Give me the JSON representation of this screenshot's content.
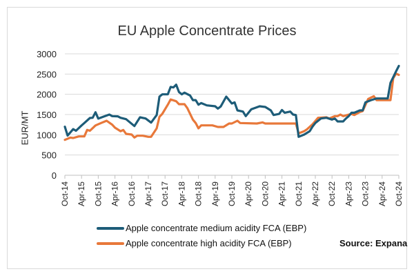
{
  "chart_data": {
    "type": "line",
    "title": "EU Apple Concentrate  Prices",
    "xlabel": "",
    "ylabel": "EUR/MT",
    "ylim": [
      0,
      3000
    ],
    "yticks": [
      0,
      500,
      1000,
      1500,
      2000,
      2500,
      3000
    ],
    "xlim": [
      "2014-10",
      "2024-10"
    ],
    "xtick_labels": [
      "Oct-14",
      "Apr-15",
      "Oct-15",
      "Apr-16",
      "Oct-16",
      "Apr-17",
      "Oct-17",
      "Apr-18",
      "Oct-18",
      "Apr-19",
      "Oct-19",
      "Apr-20",
      "Oct-20",
      "Apr-21",
      "Oct-21",
      "Apr-22",
      "Oct-22",
      "Apr-23",
      "Oct-23",
      "Apr-24",
      "Oct-24"
    ],
    "grid": "horizontal",
    "legend_position": "bottom",
    "source": "Source: Expana",
    "series": [
      {
        "name": "Apple concentrate medium acidity FCA  (EBP)",
        "color": "#1d5c78",
        "points": [
          [
            "2014-10",
            1200
          ],
          [
            "2014-11",
            980
          ],
          [
            "2015-01",
            1140
          ],
          [
            "2015-02",
            1100
          ],
          [
            "2015-04",
            1230
          ],
          [
            "2015-05",
            1290
          ],
          [
            "2015-07",
            1415
          ],
          [
            "2015-08",
            1420
          ],
          [
            "2015-09",
            1556
          ],
          [
            "2015-10",
            1400
          ],
          [
            "2015-12",
            1450
          ],
          [
            "2016-02",
            1500
          ],
          [
            "2016-03",
            1460
          ],
          [
            "2016-05",
            1455
          ],
          [
            "2016-06",
            1420
          ],
          [
            "2016-08",
            1386
          ],
          [
            "2016-11",
            1215
          ],
          [
            "2017-01",
            1431
          ],
          [
            "2017-03",
            1403
          ],
          [
            "2017-05",
            1300
          ],
          [
            "2017-07",
            1488
          ],
          [
            "2017-08",
            1943
          ],
          [
            "2017-09",
            2000
          ],
          [
            "2017-11",
            2000
          ],
          [
            "2017-12",
            2181
          ],
          [
            "2018-01",
            2170
          ],
          [
            "2018-02",
            2238
          ],
          [
            "2018-03",
            2056
          ],
          [
            "2018-04",
            2000
          ],
          [
            "2018-05",
            2040
          ],
          [
            "2018-07",
            1971
          ],
          [
            "2018-08",
            1857
          ],
          [
            "2018-09",
            1857
          ],
          [
            "2018-10",
            1744
          ],
          [
            "2018-11",
            1783
          ],
          [
            "2019-01",
            1727
          ],
          [
            "2019-04",
            1704
          ],
          [
            "2019-05",
            1647
          ],
          [
            "2019-06",
            1700
          ],
          [
            "2019-08",
            1943
          ],
          [
            "2019-10",
            1772
          ],
          [
            "2019-11",
            1800
          ],
          [
            "2019-12",
            1602
          ],
          [
            "2020-02",
            1573
          ],
          [
            "2020-03",
            1460
          ],
          [
            "2020-05",
            1630
          ],
          [
            "2020-08",
            1704
          ],
          [
            "2020-10",
            1687
          ],
          [
            "2020-12",
            1602
          ],
          [
            "2021-01",
            1488
          ],
          [
            "2021-03",
            1516
          ],
          [
            "2021-04",
            1613
          ],
          [
            "2021-05",
            1545
          ],
          [
            "2021-07",
            1573
          ],
          [
            "2021-08",
            1500
          ],
          [
            "2021-09",
            1488
          ],
          [
            "2021-10",
            949
          ],
          [
            "2021-12",
            1005
          ],
          [
            "2022-02",
            1090
          ],
          [
            "2022-03",
            1204
          ],
          [
            "2022-04",
            1290
          ],
          [
            "2022-06",
            1403
          ],
          [
            "2022-08",
            1420
          ],
          [
            "2022-10",
            1375
          ],
          [
            "2022-11",
            1403
          ],
          [
            "2022-12",
            1329
          ],
          [
            "2023-02",
            1329
          ],
          [
            "2023-03",
            1403
          ],
          [
            "2023-04",
            1460
          ],
          [
            "2023-05",
            1545
          ],
          [
            "2023-06",
            1545
          ],
          [
            "2023-08",
            1602
          ],
          [
            "2023-09",
            1602
          ],
          [
            "2023-10",
            1800
          ],
          [
            "2023-12",
            1857
          ],
          [
            "2024-02",
            1897
          ],
          [
            "2024-06",
            1897
          ],
          [
            "2024-07",
            2283
          ],
          [
            "2024-09",
            2567
          ],
          [
            "2024-10",
            2700
          ]
        ]
      },
      {
        "name": "Apple concentrate high acidity FCA (EBP)",
        "color": "#e8783a",
        "points": [
          [
            "2014-10",
            875
          ],
          [
            "2014-12",
            930
          ],
          [
            "2015-01",
            920
          ],
          [
            "2015-03",
            960
          ],
          [
            "2015-05",
            960
          ],
          [
            "2015-06",
            1120
          ],
          [
            "2015-07",
            1100
          ],
          [
            "2015-09",
            1230
          ],
          [
            "2015-11",
            1290
          ],
          [
            "2016-01",
            1346
          ],
          [
            "2016-03",
            1250
          ],
          [
            "2016-04",
            1176
          ],
          [
            "2016-06",
            1090
          ],
          [
            "2016-07",
            1119
          ],
          [
            "2016-08",
            1022
          ],
          [
            "2016-10",
            1005
          ],
          [
            "2016-11",
            932
          ],
          [
            "2016-12",
            977
          ],
          [
            "2017-02",
            977
          ],
          [
            "2017-04",
            949
          ],
          [
            "2017-05",
            949
          ],
          [
            "2017-07",
            1159
          ],
          [
            "2017-08",
            1443
          ],
          [
            "2017-09",
            1517
          ],
          [
            "2017-11",
            1744
          ],
          [
            "2017-12",
            1874
          ],
          [
            "2018-02",
            1829
          ],
          [
            "2018-03",
            1755
          ],
          [
            "2018-05",
            1755
          ],
          [
            "2018-06",
            1659
          ],
          [
            "2018-08",
            1375
          ],
          [
            "2018-09",
            1290
          ],
          [
            "2018-10",
            1159
          ],
          [
            "2018-11",
            1233
          ],
          [
            "2019-03",
            1233
          ],
          [
            "2019-05",
            1193
          ],
          [
            "2019-07",
            1193
          ],
          [
            "2019-09",
            1278
          ],
          [
            "2019-10",
            1278
          ],
          [
            "2019-12",
            1346
          ],
          [
            "2020-01",
            1290
          ],
          [
            "2020-07",
            1278
          ],
          [
            "2020-09",
            1306
          ],
          [
            "2020-10",
            1278
          ],
          [
            "2021-09",
            1278
          ],
          [
            "2021-10",
            1034
          ],
          [
            "2021-12",
            1090
          ],
          [
            "2022-01",
            1136
          ],
          [
            "2022-03",
            1261
          ],
          [
            "2022-05",
            1420
          ],
          [
            "2022-08",
            1431
          ],
          [
            "2022-09",
            1403
          ],
          [
            "2022-11",
            1460
          ],
          [
            "2022-12",
            1460
          ],
          [
            "2023-01",
            1500
          ],
          [
            "2023-02",
            1460
          ],
          [
            "2023-05",
            1516
          ],
          [
            "2023-06",
            1488
          ],
          [
            "2023-08",
            1562
          ],
          [
            "2023-09",
            1585
          ],
          [
            "2023-11",
            1886
          ],
          [
            "2024-01",
            1954
          ],
          [
            "2024-02",
            1857
          ],
          [
            "2024-07",
            1857
          ],
          [
            "2024-08",
            2397
          ],
          [
            "2024-09",
            2511
          ],
          [
            "2024-10",
            2480
          ]
        ]
      }
    ]
  }
}
